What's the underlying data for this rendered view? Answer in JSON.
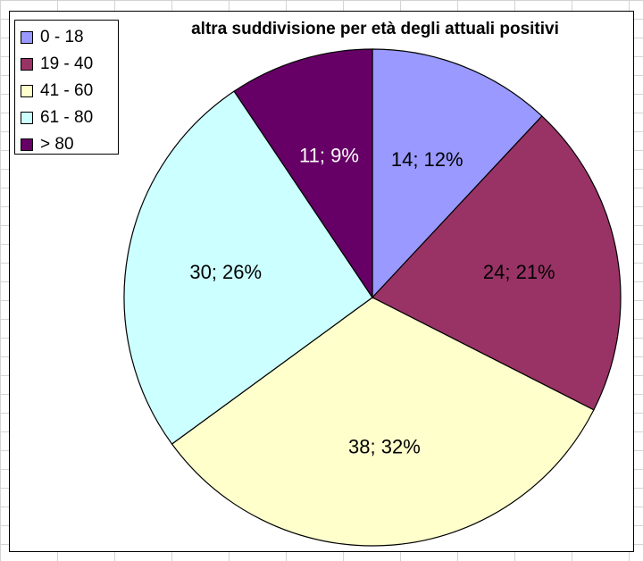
{
  "chart_data": {
    "type": "pie",
    "title": "altra suddivisione per età degli attuali positivi",
    "categories": [
      "0 - 18",
      "19 - 40",
      "41 - 60",
      "61 - 80",
      "> 80"
    ],
    "values": [
      14,
      24,
      38,
      30,
      11
    ],
    "percent_labels": [
      "12%",
      "21%",
      "32%",
      "26%",
      "9%"
    ],
    "colors": [
      "#9999ff",
      "#993366",
      "#ffffcc",
      "#ccffff",
      "#660066"
    ],
    "label_colors": [
      "#000000",
      "#000000",
      "#000000",
      "#000000",
      "#ffffff"
    ],
    "legend_position": "top-left",
    "start_angle_deg": 0,
    "direction": "clockwise"
  }
}
